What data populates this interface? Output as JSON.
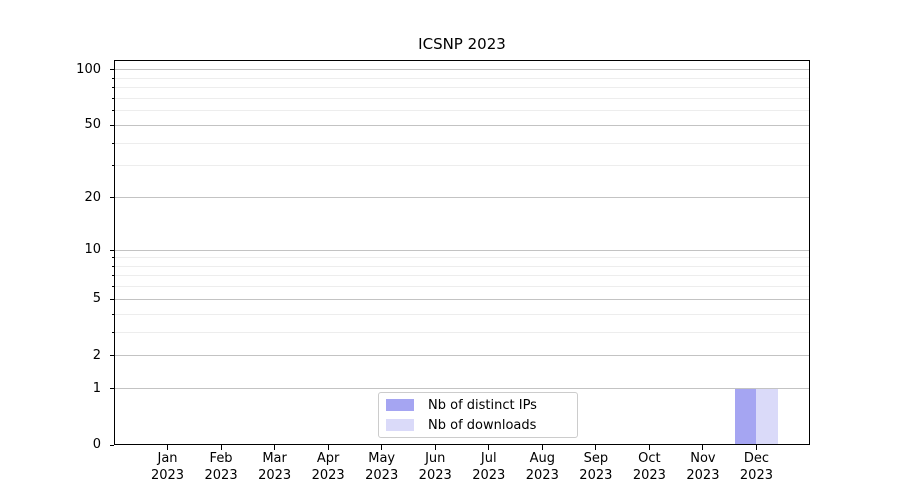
{
  "chart_data": {
    "type": "bar",
    "title": "ICSNP 2023",
    "categories": [
      "Jan",
      "Feb",
      "Mar",
      "Apr",
      "May",
      "Jun",
      "Jul",
      "Aug",
      "Sep",
      "Oct",
      "Nov",
      "Dec"
    ],
    "category_year": "2023",
    "series": [
      {
        "name": "Nb of distinct IPs",
        "color": "#a5a5f2",
        "values": [
          0,
          0,
          0,
          0,
          0,
          0,
          0,
          0,
          0,
          0,
          0,
          1
        ]
      },
      {
        "name": "Nb of downloads",
        "color": "#dadaf9",
        "values": [
          0,
          0,
          0,
          0,
          0,
          0,
          0,
          0,
          0,
          0,
          0,
          1
        ]
      }
    ],
    "xlabel": "",
    "ylabel": "",
    "y_scale": "log1p",
    "ylim": [
      0,
      113
    ],
    "y_major_ticks": [
      0,
      1,
      2,
      5,
      10,
      20,
      50,
      100
    ],
    "y_minor_ticks": [
      3,
      4,
      6,
      7,
      8,
      9,
      30,
      40,
      60,
      70,
      80,
      90
    ],
    "bar_width_fraction": 0.4,
    "grid": true,
    "legend": {
      "position": "lower center",
      "entries": [
        "Nb of distinct IPs",
        "Nb of downloads"
      ]
    },
    "colors": {
      "background": "#ffffff",
      "axis": "#000000",
      "text": "#000000",
      "major_grid": "#c3c3c3",
      "minor_grid": "#ededed",
      "legend_border": "#cccccc"
    }
  }
}
